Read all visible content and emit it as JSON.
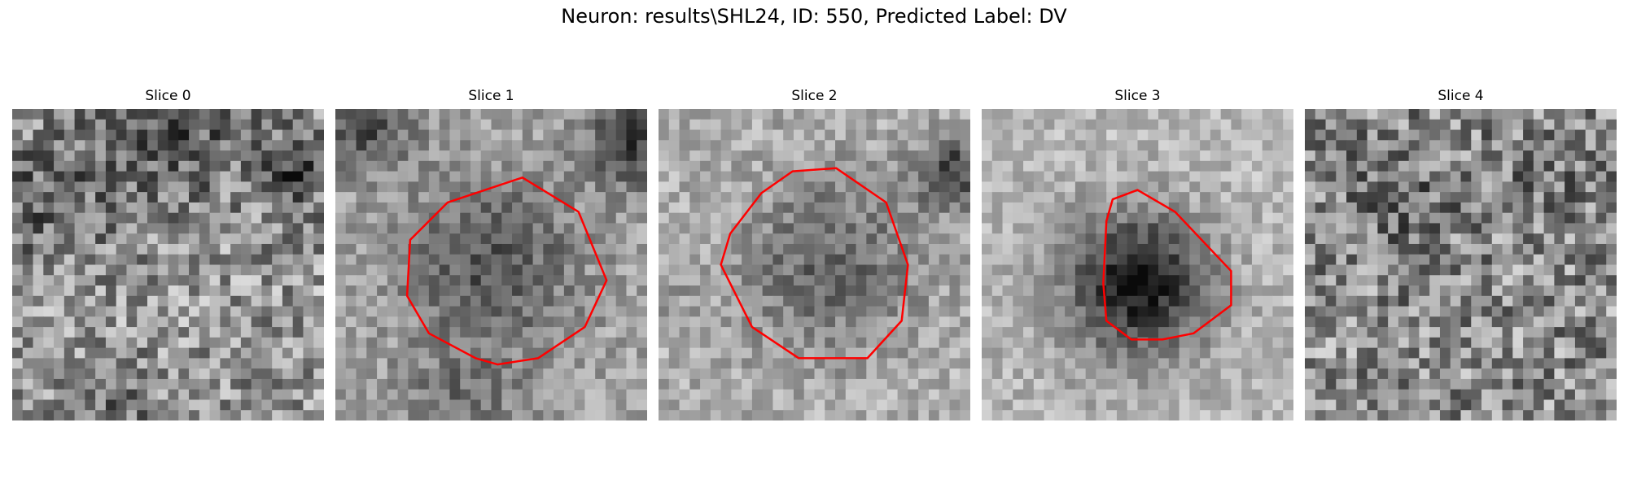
{
  "figure": {
    "title": "Neuron: results\\SHL24, ID: 550, Predicted Label: DV",
    "colors": {
      "contour": "#ff0000",
      "background": "#ffffff"
    },
    "panels": [
      {
        "title": "Slice 0",
        "has_contour": false
      },
      {
        "title": "Slice 1",
        "has_contour": true
      },
      {
        "title": "Slice 2",
        "has_contour": true
      },
      {
        "title": "Slice 3",
        "has_contour": true
      },
      {
        "title": "Slice 4",
        "has_contour": false
      }
    ]
  }
}
